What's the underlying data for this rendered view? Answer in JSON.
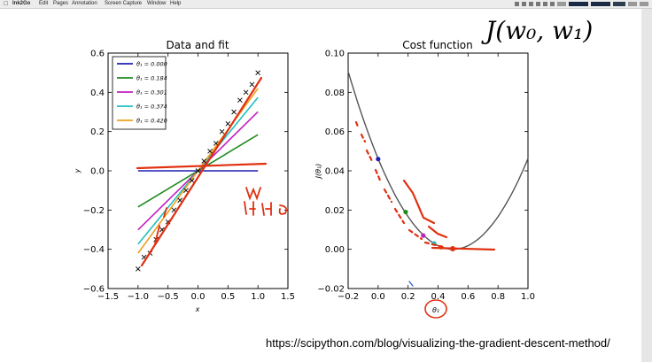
{
  "menubar": {
    "app": "Ink2Go",
    "items": [
      "Edit",
      "Pages",
      "Annotation",
      "Screen Capture",
      "Window",
      "Help"
    ]
  },
  "colors": {
    "line0": "#1f1fb4",
    "line1": "#208c20",
    "line2": "#c020c0",
    "line3": "#20c0c0",
    "line4": "#f0a020",
    "annotation": "#e03010",
    "cost_curve": "#555555"
  },
  "annotation": {
    "cost_label": "J(w₀, w₁)",
    "url": "https://scipython.com/blog/visualizing-the-gradient-descent-method/"
  },
  "chart_data": [
    {
      "type": "line",
      "title": "Data and fit",
      "xlabel": "x",
      "ylabel": "y",
      "xlim": [
        -1.5,
        1.5
      ],
      "ylim": [
        -0.6,
        0.6
      ],
      "xticks": [
        "−1.5",
        "−1.0",
        "−0.5",
        "0.0",
        "0.5",
        "1.0",
        "1.5"
      ],
      "yticks": [
        "0.6",
        "0.4",
        "0.2",
        "0.0",
        "−0.2",
        "−0.4",
        "−0.6"
      ],
      "legend_position": "top-left",
      "series": [
        {
          "name": "θ₁ = 0.000",
          "slope": 0.0
        },
        {
          "name": "θ₁ = 0.184",
          "slope": 0.184
        },
        {
          "name": "θ₁ = 0.301",
          "slope": 0.301
        },
        {
          "name": "θ₁ = 0.374",
          "slope": 0.374
        },
        {
          "name": "θ₁ = 0.420",
          "slope": 0.42
        }
      ],
      "data_points": {
        "x": [
          -1.0,
          -0.9,
          -0.8,
          -0.7,
          -0.6,
          -0.5,
          -0.4,
          -0.3,
          -0.2,
          -0.1,
          0.0,
          0.1,
          0.2,
          0.3,
          0.4,
          0.5,
          0.6,
          0.7,
          0.8,
          0.9,
          1.0
        ],
        "y": [
          -0.5,
          -0.44,
          -0.42,
          -0.35,
          -0.3,
          -0.26,
          -0.2,
          -0.15,
          -0.1,
          -0.05,
          0.0,
          0.05,
          0.1,
          0.14,
          0.2,
          0.24,
          0.3,
          0.36,
          0.4,
          0.44,
          0.5
        ]
      }
    },
    {
      "type": "line",
      "title": "Cost function",
      "xlabel": "θ₁",
      "ylabel": "J(θ₁)",
      "xlim": [
        -0.2,
        1.0
      ],
      "ylim": [
        -0.02,
        0.1
      ],
      "xticks": [
        "−0.2",
        "0.0",
        "0.2",
        "0.4",
        "0.6",
        "0.8",
        "1.0"
      ],
      "yticks": [
        "0.10",
        "0.08",
        "0.06",
        "0.04",
        "0.02",
        "0.00",
        "−0.02"
      ],
      "curve": {
        "a": 0.185,
        "min_x": 0.5
      },
      "steps": {
        "theta": [
          0.0,
          0.184,
          0.301,
          0.374,
          0.42
        ],
        "cost": [
          0.046,
          0.019,
          0.007,
          0.003,
          0.001
        ]
      }
    }
  ]
}
